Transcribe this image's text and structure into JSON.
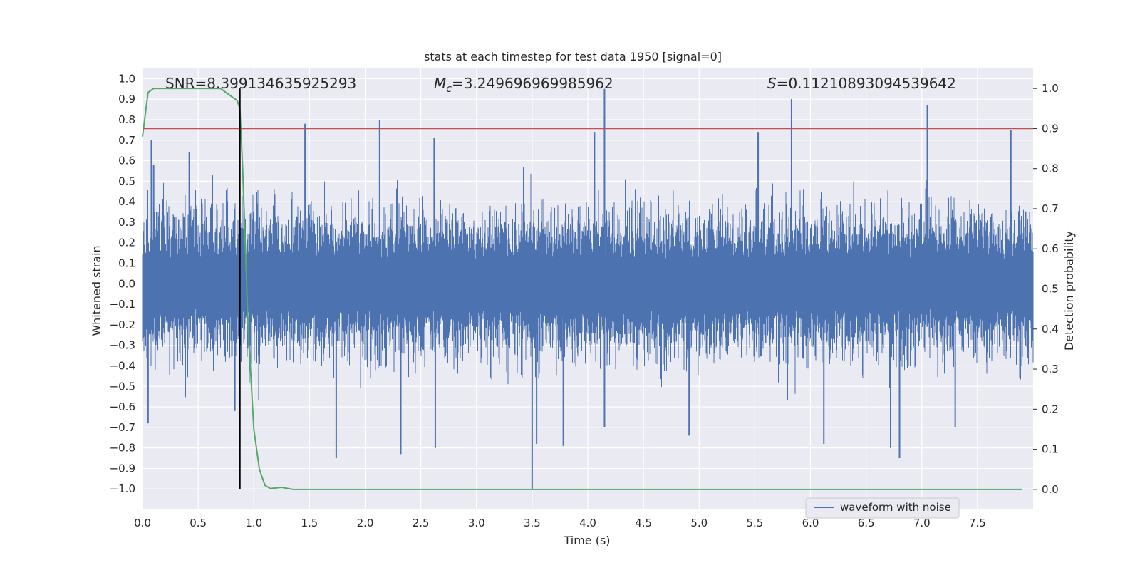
{
  "chart_data": {
    "type": "line",
    "title": "stats at each timestep for test data 1950 [signal=0]",
    "xlabel": "Time (s)",
    "ylabel": "Whitened strain",
    "ylabel_right": "Detection probability",
    "xlim": [
      0.0,
      8.0
    ],
    "ylim": [
      -1.1,
      1.05
    ],
    "ylim_right": [
      -0.05,
      1.05
    ],
    "x_ticks": [
      "0.0",
      "0.5",
      "1.0",
      "1.5",
      "2.0",
      "2.5",
      "3.0",
      "3.5",
      "4.0",
      "4.5",
      "5.0",
      "5.5",
      "6.0",
      "6.5",
      "7.0",
      "7.5"
    ],
    "y_ticks": [
      "1.0",
      "0.9",
      "0.8",
      "0.7",
      "0.6",
      "0.5",
      "0.4",
      "0.3",
      "0.2",
      "0.1",
      "0.0",
      "−0.1",
      "−0.2",
      "−0.3",
      "−0.4",
      "−0.5",
      "−0.6",
      "−0.7",
      "−0.8",
      "−0.9",
      "−1.0"
    ],
    "y_ticks_right": [
      "1.0",
      "0.9",
      "0.8",
      "0.7",
      "0.6",
      "0.5",
      "0.4",
      "0.3",
      "0.2",
      "0.1",
      "0.0"
    ],
    "grid": true,
    "legend_position": "lower-right",
    "annotations": {
      "snr": "SNR=8.399134635925293",
      "mc_symbol": "M",
      "mc_sub": "c",
      "mc_value": "=3.249696969985962",
      "s_symbol": "S",
      "s_value": "=0.11210893094539642"
    },
    "series": [
      {
        "name": "waveform with noise",
        "color": "#4c72b0",
        "kind": "noise-strain",
        "typical_range": [
          -0.45,
          0.5
        ],
        "spikes": [
          {
            "x": 0.05,
            "y": -0.68
          },
          {
            "x": 0.1,
            "y": 0.58
          },
          {
            "x": 0.08,
            "y": 0.7
          },
          {
            "x": 0.42,
            "y": 0.64
          },
          {
            "x": 0.83,
            "y": -0.62
          },
          {
            "x": 1.46,
            "y": 0.78
          },
          {
            "x": 1.74,
            "y": -0.85
          },
          {
            "x": 2.13,
            "y": 0.8
          },
          {
            "x": 2.32,
            "y": -0.83
          },
          {
            "x": 2.62,
            "y": 0.71
          },
          {
            "x": 2.63,
            "y": -0.8
          },
          {
            "x": 3.5,
            "y": -1.0
          },
          {
            "x": 3.54,
            "y": -0.78
          },
          {
            "x": 3.78,
            "y": -0.79
          },
          {
            "x": 4.06,
            "y": 0.74
          },
          {
            "x": 4.15,
            "y": 0.95
          },
          {
            "x": 4.15,
            "y": -0.7
          },
          {
            "x": 4.91,
            "y": -0.74
          },
          {
            "x": 5.53,
            "y": 0.74
          },
          {
            "x": 5.83,
            "y": 0.9
          },
          {
            "x": 6.12,
            "y": -0.78
          },
          {
            "x": 6.72,
            "y": -0.8
          },
          {
            "x": 6.8,
            "y": -0.85
          },
          {
            "x": 7.05,
            "y": 0.87
          },
          {
            "x": 7.3,
            "y": -0.7
          },
          {
            "x": 7.8,
            "y": 0.75
          }
        ]
      },
      {
        "color": "#55a868",
        "axis": "right",
        "x": [
          0.0,
          0.05,
          0.1,
          0.2,
          0.3,
          0.4,
          0.5,
          0.6,
          0.65,
          0.7,
          0.75,
          0.8,
          0.85,
          0.875,
          0.9,
          0.95,
          1.0,
          1.05,
          1.1,
          1.15,
          1.25,
          1.35,
          1.45,
          1.55,
          1.63,
          1.7,
          1.75,
          1.8,
          1.85,
          1.9,
          1.95,
          2.0,
          2.05,
          2.1,
          2.2,
          2.3,
          2.4,
          2.5,
          2.6,
          2.65,
          2.7,
          2.75,
          2.8,
          2.85,
          2.9,
          2.95,
          3.0,
          3.05,
          3.1,
          3.2,
          3.3,
          3.4,
          3.5,
          3.6,
          3.7,
          3.75,
          3.8,
          3.85,
          3.9,
          3.95,
          4.0,
          4.05,
          4.1,
          4.15,
          4.2,
          4.25,
          4.3,
          4.4,
          4.5,
          4.7,
          5.0,
          5.5,
          6.0,
          6.5,
          6.6,
          6.7,
          6.8,
          6.9,
          7.0,
          7.05,
          7.1,
          7.15,
          7.2,
          7.3,
          7.4,
          7.5,
          7.55,
          7.6,
          7.7,
          7.8,
          7.9
        ],
        "y": [
          0.88,
          0.99,
          1.0,
          1.0,
          1.0,
          1.0,
          1.0,
          1.0,
          1.0,
          1.0,
          0.99,
          0.98,
          0.97,
          0.95,
          0.8,
          0.4,
          0.15,
          0.05,
          0.01,
          0.002,
          0.005,
          0.0,
          0.0,
          0.0,
          0.0,
          0.0,
          0.0,
          0.0,
          0.0,
          0.0,
          0.0,
          0.0,
          0.0,
          0.0,
          0.0,
          0.0,
          0.0,
          0.0,
          0.0,
          0.0,
          0.0,
          0.0,
          0.0,
          0.0,
          0.0,
          0.0,
          0.0,
          0.0,
          0.0,
          0.0,
          0.0,
          0.0,
          0.0,
          0.0,
          0.0,
          0.0,
          0.0,
          0.0,
          0.0,
          0.0,
          0.0,
          0.0,
          0.0,
          0.0,
          0.0,
          0.0,
          0.0,
          0.0,
          0.0,
          0.0,
          0.0,
          0.0,
          0.0,
          0.0,
          0.0,
          0.0,
          0.0,
          0.0,
          0.0,
          0.0,
          0.0,
          0.0,
          0.0,
          0.0,
          0.0,
          0.0,
          0.0,
          0.0,
          0.0,
          0.0,
          0.0
        ]
      }
    ],
    "threshold": {
      "axis": "right",
      "y": 0.9,
      "color": "#c44e52"
    },
    "marker_line": {
      "x": 0.875,
      "color": "#000000"
    }
  }
}
